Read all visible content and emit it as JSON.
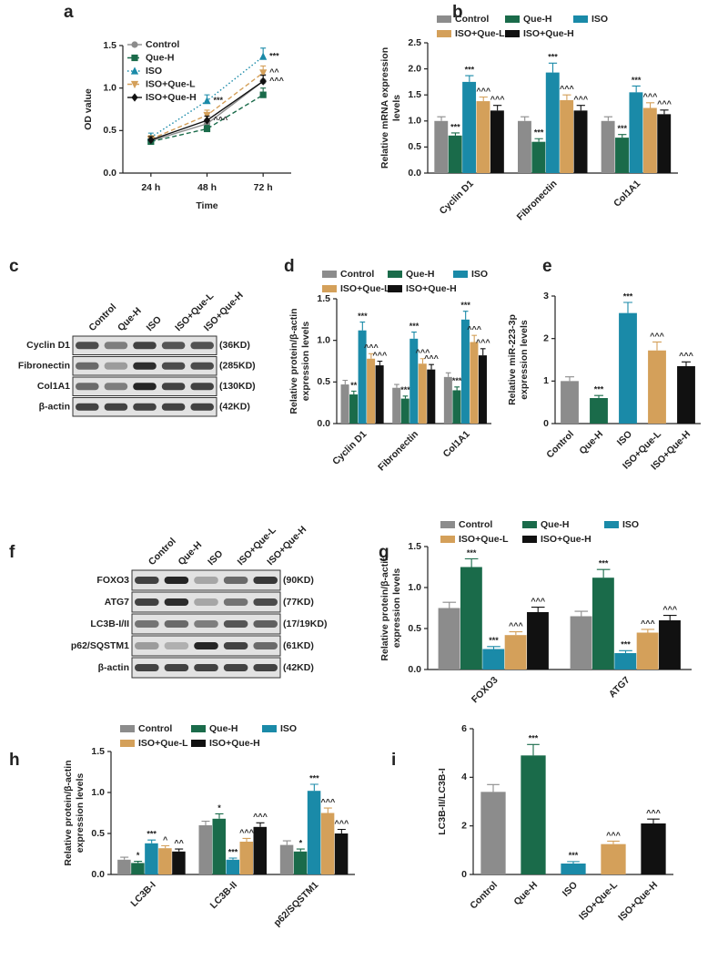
{
  "chart_data": [
    {
      "type": "line",
      "panel": "a",
      "categories": [
        "24 h",
        "48 h",
        "72 h"
      ],
      "xlabel": "Time",
      "ylabel": [
        "OD value"
      ],
      "ylim": [
        0,
        1.5
      ],
      "yticks": [
        {
          "value": 0,
          "label": "0.0"
        },
        0.5,
        {
          "value": 1,
          "label": "1.0"
        },
        1.5
      ],
      "series": [
        {
          "name": "Control",
          "color": "#8c8c8c",
          "marker": "circle",
          "linestyle": "solid",
          "values": [
            0.38,
            0.58,
            1.08
          ],
          "errors": [
            0.04,
            0.05,
            0.08
          ],
          "annotations": [
            null,
            null,
            null
          ]
        },
        {
          "name": "Que-H",
          "color": "#1a6b4a",
          "marker": "square",
          "linestyle": "dashed",
          "values": [
            0.37,
            0.52,
            0.92
          ],
          "errors": [
            0.03,
            0.04,
            0.08
          ],
          "annotations": [
            null,
            null,
            null
          ]
        },
        {
          "name": "ISO",
          "color": "#1a8aa8",
          "marker": "triangle-up",
          "linestyle": "dotted",
          "values": [
            0.42,
            0.85,
            1.37
          ],
          "errors": [
            0.05,
            0.07,
            0.1
          ],
          "annotations": [
            null,
            "***",
            "***"
          ]
        },
        {
          "name": "ISO+Que-L",
          "color": "#d4a05a",
          "marker": "triangle-down",
          "linestyle": "dashed",
          "values": [
            0.4,
            0.68,
            1.18
          ],
          "errors": [
            0.04,
            0.06,
            0.08
          ],
          "annotations": [
            null,
            null,
            "^^"
          ]
        },
        {
          "name": "ISO+Que-H",
          "color": "#111111",
          "marker": "diamond",
          "linestyle": "solid",
          "values": [
            0.39,
            0.62,
            1.08
          ],
          "errors": [
            0.04,
            0.05,
            0.07
          ],
          "annotations": [
            null,
            "^^^",
            "^^^"
          ]
        }
      ]
    },
    {
      "type": "bar",
      "panel": "b",
      "categories": [
        "Cyclin D1",
        "Fibronectin",
        "Col1A1"
      ],
      "ylabel": [
        "Relative mRNA expression",
        "levels"
      ],
      "ylim": [
        0,
        2.5
      ],
      "yticks": [
        {
          "value": 0,
          "label": "0.0"
        },
        0.5,
        {
          "value": 1,
          "label": "1.0"
        },
        1.5,
        {
          "value": 2,
          "label": "2.0"
        },
        2.5
      ],
      "series": [
        {
          "name": "Control",
          "color": "#8c8c8c",
          "values": [
            1.0,
            1.0,
            1.0
          ],
          "errors": [
            0.08,
            0.08,
            0.08
          ],
          "annotations": [
            null,
            null,
            null
          ]
        },
        {
          "name": "Que-H",
          "color": "#1a6b4a",
          "values": [
            0.72,
            0.6,
            0.68
          ],
          "errors": [
            0.05,
            0.06,
            0.06
          ],
          "annotations": [
            "***",
            "***",
            "***"
          ]
        },
        {
          "name": "ISO",
          "color": "#1a8aa8",
          "values": [
            1.75,
            1.93,
            1.55
          ],
          "errors": [
            0.12,
            0.18,
            0.12
          ],
          "annotations": [
            "***",
            "***",
            "***"
          ]
        },
        {
          "name": "ISO+Que-L",
          "color": "#d4a05a",
          "values": [
            1.38,
            1.4,
            1.25
          ],
          "errors": [
            0.08,
            0.1,
            0.1
          ],
          "annotations": [
            "^^^",
            "^^^",
            "^^^"
          ]
        },
        {
          "name": "ISO+Que-H",
          "color": "#111111",
          "values": [
            1.2,
            1.2,
            1.13
          ],
          "errors": [
            0.1,
            0.1,
            0.08
          ],
          "annotations": [
            "^^^",
            "^^^",
            "^^^"
          ]
        }
      ]
    },
    {
      "type": "bar",
      "panel": "d",
      "categories": [
        "Cyclin D1",
        "Fibronectin",
        "Col1A1"
      ],
      "ylabel": [
        "Relative protein/β-actin",
        "expression levels"
      ],
      "ylim": [
        0,
        1.5
      ],
      "yticks": [
        {
          "value": 0,
          "label": "0.0"
        },
        0.5,
        {
          "value": 1,
          "label": "1.0"
        },
        1.5
      ],
      "series": [
        {
          "name": "Control",
          "color": "#8c8c8c",
          "values": [
            0.47,
            0.43,
            0.56
          ],
          "errors": [
            0.05,
            0.04,
            0.05
          ],
          "annotations": [
            null,
            null,
            null
          ]
        },
        {
          "name": "Que-H",
          "color": "#1a6b4a",
          "values": [
            0.35,
            0.3,
            0.4
          ],
          "errors": [
            0.04,
            0.03,
            0.04
          ],
          "annotations": [
            "**",
            "***",
            "***"
          ]
        },
        {
          "name": "ISO",
          "color": "#1a8aa8",
          "values": [
            1.12,
            1.02,
            1.25
          ],
          "errors": [
            0.1,
            0.08,
            0.1
          ],
          "annotations": [
            "***",
            "***",
            "***"
          ]
        },
        {
          "name": "ISO+Que-L",
          "color": "#d4a05a",
          "values": [
            0.78,
            0.72,
            0.98
          ],
          "errors": [
            0.06,
            0.06,
            0.08
          ],
          "annotations": [
            "^^^",
            "^^^",
            "^^^"
          ]
        },
        {
          "name": "ISO+Que-H",
          "color": "#111111",
          "values": [
            0.7,
            0.65,
            0.82
          ],
          "errors": [
            0.05,
            0.06,
            0.08
          ],
          "annotations": [
            "^^^",
            "^^^",
            "^^^"
          ]
        }
      ]
    },
    {
      "type": "bar",
      "panel": "e",
      "categories": [
        "Control",
        "Que-H",
        "ISO",
        "ISO+Que-L",
        "ISO+Que-H"
      ],
      "ylabel": [
        "Relative miR-223-3p",
        "expression levels"
      ],
      "ylim": [
        0,
        3
      ],
      "yticks": [
        0,
        1,
        2,
        3
      ],
      "colors": [
        "#8c8c8c",
        "#1a6b4a",
        "#1a8aa8",
        "#d4a05a",
        "#111111"
      ],
      "values": [
        1.0,
        0.6,
        2.6,
        1.72,
        1.35
      ],
      "errors": [
        0.1,
        0.06,
        0.25,
        0.2,
        0.1
      ],
      "annotations": [
        null,
        "***",
        "***",
        "^^^",
        "^^^"
      ]
    },
    {
      "type": "bar",
      "panel": "g",
      "categories": [
        "FOXO3",
        "ATG7"
      ],
      "ylabel": [
        "Relative protein/β-actin",
        "expression levels"
      ],
      "ylim": [
        0,
        1.5
      ],
      "yticks": [
        {
          "value": 0,
          "label": "0.0"
        },
        0.5,
        {
          "value": 1,
          "label": "1.0"
        },
        1.5
      ],
      "series": [
        {
          "name": "Control",
          "color": "#8c8c8c",
          "values": [
            0.75,
            0.65
          ],
          "errors": [
            0.07,
            0.06
          ],
          "annotations": [
            null,
            null
          ]
        },
        {
          "name": "Que-H",
          "color": "#1a6b4a",
          "values": [
            1.25,
            1.12
          ],
          "errors": [
            0.1,
            0.1
          ],
          "annotations": [
            "***",
            "***"
          ]
        },
        {
          "name": "ISO",
          "color": "#1a8aa8",
          "values": [
            0.25,
            0.2
          ],
          "errors": [
            0.03,
            0.03
          ],
          "annotations": [
            "***",
            "***"
          ]
        },
        {
          "name": "ISO+Que-L",
          "color": "#d4a05a",
          "values": [
            0.42,
            0.45
          ],
          "errors": [
            0.04,
            0.04
          ],
          "annotations": [
            "^^^",
            "^^^"
          ]
        },
        {
          "name": "ISO+Que-H",
          "color": "#111111",
          "values": [
            0.7,
            0.6
          ],
          "errors": [
            0.06,
            0.06
          ],
          "annotations": [
            "^^^",
            "^^^"
          ]
        }
      ]
    },
    {
      "type": "bar",
      "panel": "h",
      "categories": [
        "LC3B-I",
        "LC3B-II",
        "p62/SQSTM1"
      ],
      "ylabel": [
        "Relative protein/β-actin",
        "expression levels"
      ],
      "ylim": [
        0,
        1.5
      ],
      "yticks": [
        {
          "value": 0,
          "label": "0.0"
        },
        0.5,
        {
          "value": 1,
          "label": "1.0"
        },
        1.5
      ],
      "series": [
        {
          "name": "Control",
          "color": "#8c8c8c",
          "values": [
            0.18,
            0.6,
            0.36
          ],
          "errors": [
            0.03,
            0.05,
            0.05
          ],
          "annotations": [
            null,
            null,
            null
          ]
        },
        {
          "name": "Que-H",
          "color": "#1a6b4a",
          "values": [
            0.14,
            0.68,
            0.28
          ],
          "errors": [
            0.02,
            0.06,
            0.03
          ],
          "annotations": [
            "*",
            "*",
            "*"
          ]
        },
        {
          "name": "ISO",
          "color": "#1a8aa8",
          "values": [
            0.38,
            0.18,
            1.02
          ],
          "errors": [
            0.04,
            0.02,
            0.08
          ],
          "annotations": [
            "***",
            "***",
            "***"
          ]
        },
        {
          "name": "ISO+Que-L",
          "color": "#d4a05a",
          "values": [
            0.32,
            0.4,
            0.75
          ],
          "errors": [
            0.03,
            0.04,
            0.06
          ],
          "annotations": [
            "^",
            "^^^",
            "^^^"
          ]
        },
        {
          "name": "ISO+Que-H",
          "color": "#111111",
          "values": [
            0.28,
            0.58,
            0.5
          ],
          "errors": [
            0.03,
            0.05,
            0.05
          ],
          "annotations": [
            "^^",
            "^^^",
            "^^^"
          ]
        }
      ]
    },
    {
      "type": "bar",
      "panel": "i",
      "categories": [
        "Control",
        "Que-H",
        "ISO",
        "ISO+Que-L",
        "ISO+Que-H"
      ],
      "ylabel": [
        "LC3B-II/LC3B-I"
      ],
      "ylim": [
        0,
        6
      ],
      "yticks": [
        0,
        2,
        4,
        6
      ],
      "colors": [
        "#8c8c8c",
        "#1a6b4a",
        "#1a8aa8",
        "#d4a05a",
        "#111111"
      ],
      "values": [
        3.4,
        4.9,
        0.45,
        1.25,
        2.1
      ],
      "errors": [
        0.3,
        0.45,
        0.08,
        0.12,
        0.18
      ],
      "annotations": [
        null,
        "***",
        "***",
        "^^^",
        "^^^"
      ]
    }
  ],
  "blots": [
    {
      "panel": "c",
      "columns": [
        "Control",
        "Que-H",
        "ISO",
        "ISO+Que-L",
        "ISO+Que-H"
      ],
      "rows": [
        {
          "name": "Cyclin D1",
          "size": "(36KD)"
        },
        {
          "name": "Fibronectin",
          "size": "(285KD)"
        },
        {
          "name": "Col1A1",
          "size": "(130KD)"
        },
        {
          "name": "β-actin",
          "size": "(42KD)"
        }
      ]
    },
    {
      "panel": "f",
      "columns": [
        "Control",
        "Que-H",
        "ISO",
        "ISO+Que-L",
        "ISO+Que-H"
      ],
      "rows": [
        {
          "name": "FOXO3",
          "size": "(90KD)"
        },
        {
          "name": "ATG7",
          "size": "(77KD)"
        },
        {
          "name": "LC3B-I/II",
          "size": "(17/19KD)"
        },
        {
          "name": "p62/SQSTM1",
          "size": "(61KD)"
        },
        {
          "name": "β-actin",
          "size": "(42KD)"
        }
      ]
    }
  ]
}
